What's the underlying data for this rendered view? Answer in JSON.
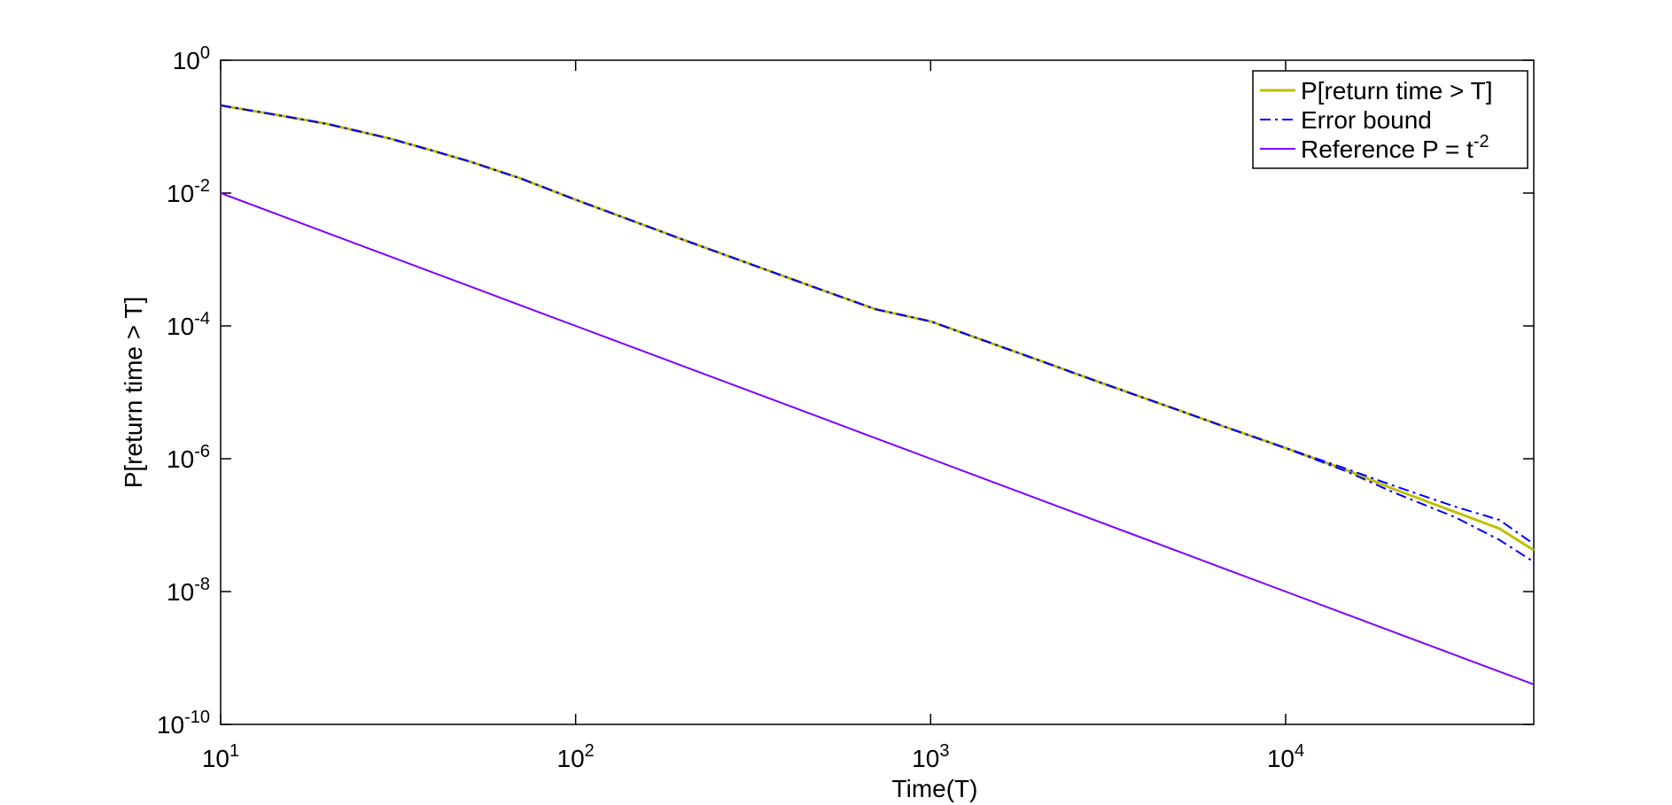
{
  "chart_data": {
    "type": "line",
    "x_label": "Time(T)",
    "y_label": "P[return time > T]",
    "xlog": true,
    "ylog": true,
    "xlim": [
      10,
      50000
    ],
    "ylim": [
      1e-10,
      1
    ],
    "xticks": [
      {
        "value": 10,
        "label": "10^1"
      },
      {
        "value": 100,
        "label": "10^2"
      },
      {
        "value": 1000,
        "label": "10^3"
      },
      {
        "value": 10000,
        "label": "10^4"
      }
    ],
    "yticks": [
      {
        "value": 1e-10,
        "label": "10^-10"
      },
      {
        "value": 1e-08,
        "label": "10^-8"
      },
      {
        "value": 1e-06,
        "label": "10^-6"
      },
      {
        "value": 0.0001,
        "label": "10^-4"
      },
      {
        "value": 0.01,
        "label": "10^-2"
      },
      {
        "value": 1,
        "label": "10^0"
      }
    ],
    "legend": "top-right",
    "x": [
      10,
      15,
      20,
      30,
      40,
      50,
      70,
      100,
      150,
      200,
      300,
      500,
      700,
      1000,
      1500,
      2000,
      3000,
      5000,
      7000,
      10000,
      15000,
      20000,
      30000,
      40000,
      50000
    ],
    "series": [
      {
        "name": "P[return time > T]",
        "color": "#bfbf00",
        "style": "solid",
        "width": 3,
        "values": [
          0.209,
          0.1445,
          0.1096,
          0.0661,
          0.0427,
          0.0302,
          0.0166,
          0.00794,
          0.00355,
          0.002,
          0.000912,
          0.000339,
          0.000178,
          0.000117,
          5.37e-05,
          3.09e-05,
          1.41e-05,
          5.37e-06,
          2.82e-06,
          1.45e-06,
          6.6e-07,
          3.55e-07,
          1.58e-07,
          8.9e-08,
          4.2e-08
        ]
      },
      {
        "name": "Error bound",
        "color": "#0000ff",
        "style": "dashdot",
        "width": 2,
        "values": [
          0.209,
          0.1445,
          0.1096,
          0.0661,
          0.0427,
          0.0302,
          0.0166,
          0.00794,
          0.00355,
          0.002,
          0.000912,
          0.000339,
          0.000178,
          0.000117,
          5.37e-05,
          3.09e-05,
          1.41e-05,
          5.37e-06,
          2.82e-06,
          1.45e-06,
          6.9e-07,
          3.98e-07,
          1.9e-07,
          1.2e-07,
          5.2e-08
        ],
        "lower": [
          0.209,
          0.1445,
          0.1096,
          0.0661,
          0.0427,
          0.0302,
          0.0166,
          0.00794,
          0.00355,
          0.002,
          0.000912,
          0.000339,
          0.000178,
          0.000117,
          5.37e-05,
          3.09e-05,
          1.41e-05,
          5.37e-06,
          2.82e-06,
          1.45e-06,
          6.3e-07,
          3.16e-07,
          1.32e-07,
          6e-08,
          2.8e-08
        ]
      },
      {
        "name": "Reference P = t^-2",
        "color": "#7f00ff",
        "style": "solid",
        "width": 2,
        "values": [
          0.01,
          0.004444,
          0.0025,
          0.001111,
          0.000625,
          0.0004,
          0.0002041,
          0.0001,
          4.444e-05,
          2.5e-05,
          1.111e-05,
          4e-06,
          2.041e-06,
          1e-06,
          4.444e-07,
          2.5e-07,
          1.111e-07,
          4e-08,
          2.041e-08,
          1e-08,
          4.444e-09,
          2.5e-09,
          1.111e-09,
          6.25e-10,
          4e-10
        ]
      }
    ]
  }
}
